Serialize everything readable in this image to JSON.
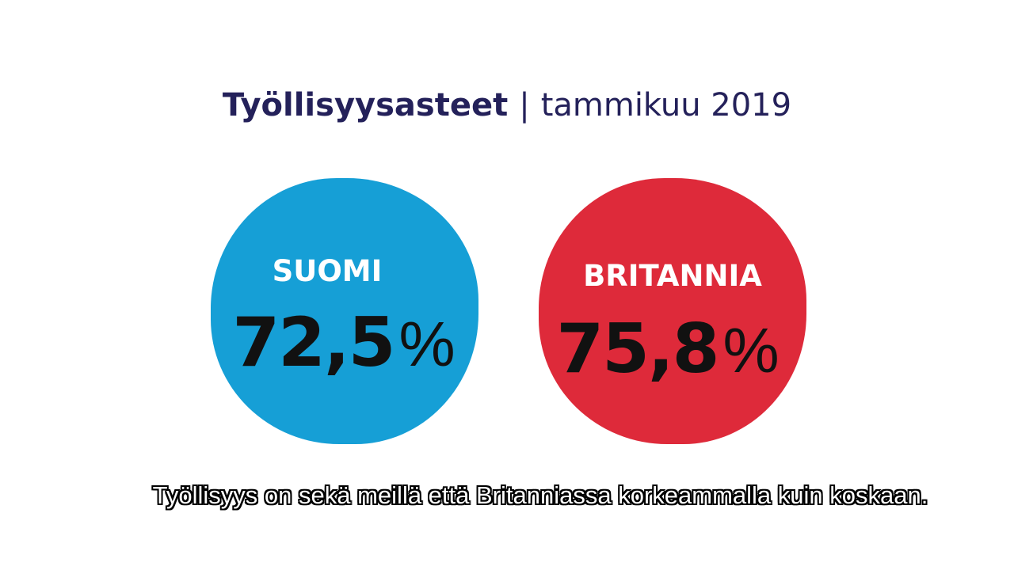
{
  "header": {
    "title": "Työllisyysasteet",
    "separator": "|",
    "subtitle": "tammikuu 2019"
  },
  "items": [
    {
      "label": "SUOMI",
      "value": "72,5",
      "unit": "%"
    },
    {
      "label": "BRITANNIA",
      "value": "75,8",
      "unit": "%"
    }
  ],
  "caption": "Työllisyys on sekä meillä että Britanniassa korkeammalla kuin koskaan."
}
